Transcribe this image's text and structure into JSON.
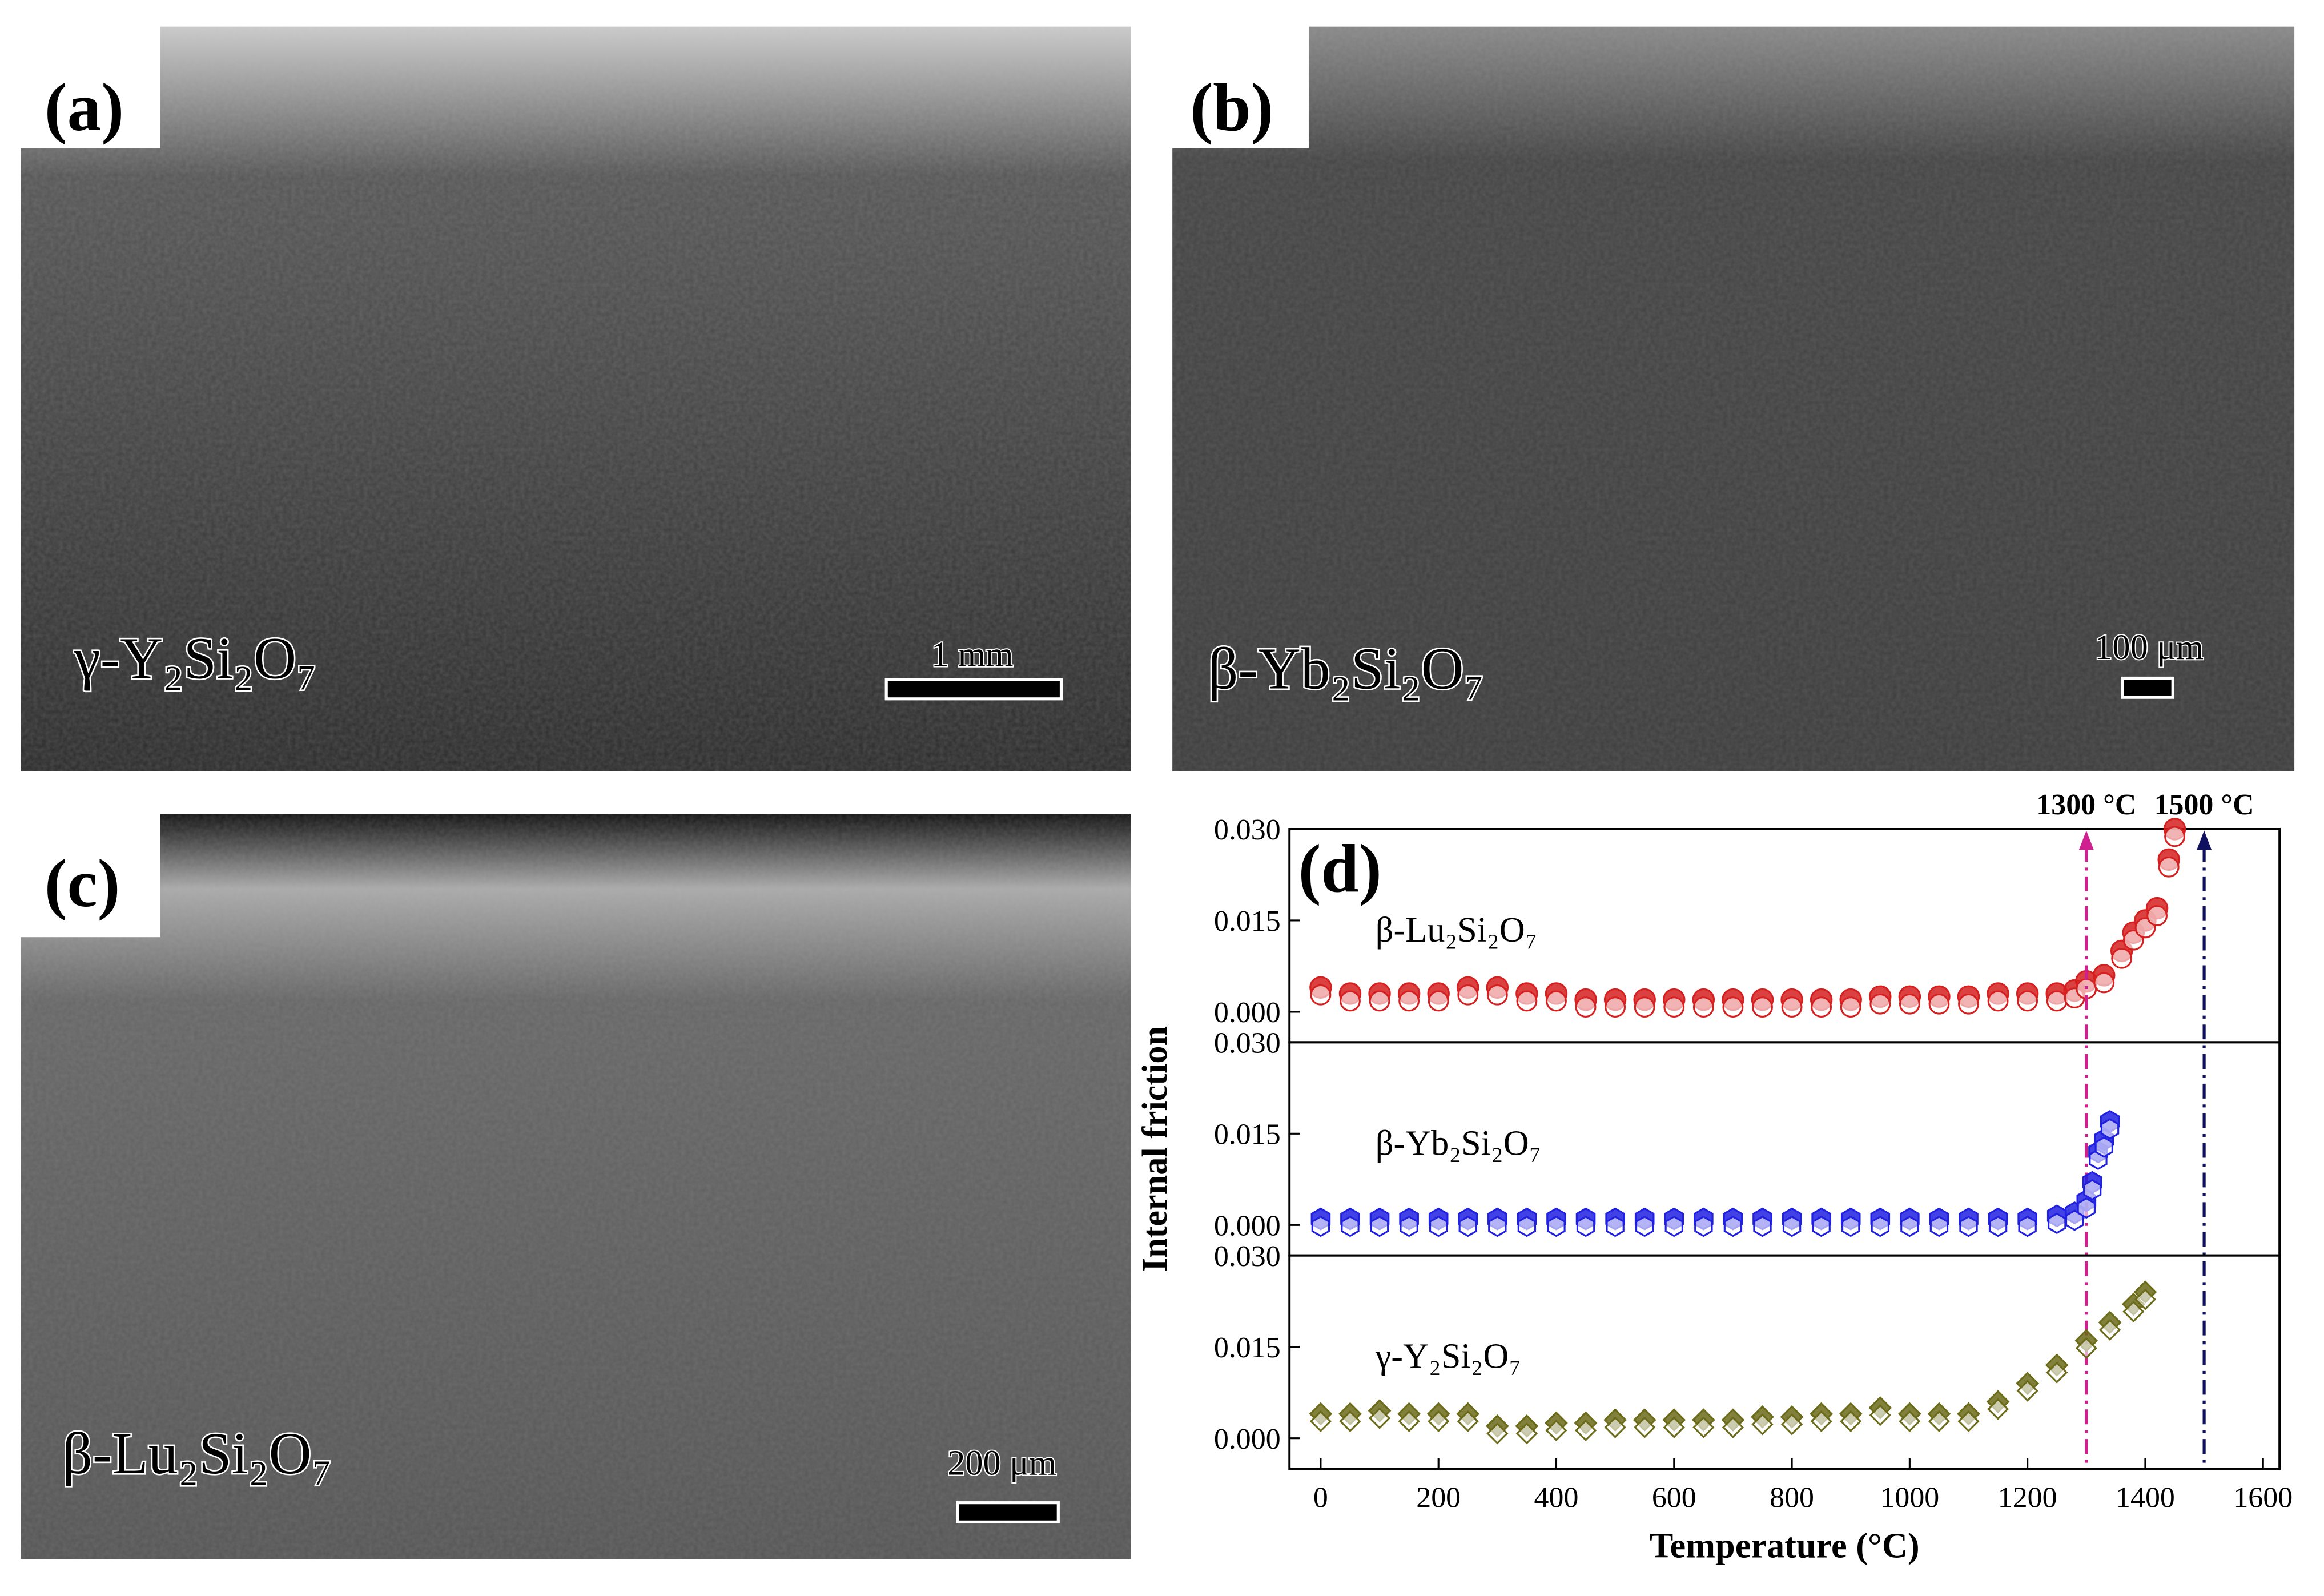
{
  "panels": [
    {
      "label": "(a)",
      "caption": "γ-Y₂Si₂O₇",
      "scale": "1 mm"
    },
    {
      "label": "(b)",
      "caption": "β-Yb₂Si₂O₇",
      "scale": "100 μm"
    },
    {
      "label": "(c)",
      "caption": "β-Lu₂Si₂O₇",
      "scale": "200 μm"
    },
    {
      "label": "(d)"
    }
  ],
  "chart_data": [
    {
      "type": "scatter",
      "ylabel": "Internal friction",
      "xlim": [
        -53,
        1628
      ],
      "ylim": [
        -0.005,
        0.03
      ],
      "yticks": [
        {
          "value": 0,
          "label": "0.000"
        },
        {
          "value": 0.015,
          "label": "0.015"
        },
        {
          "value": 0.03,
          "label": "0.030"
        }
      ],
      "annotations": [
        {
          "x": 1300,
          "label": "1300 °C",
          "color": "#d0208f"
        },
        {
          "x": 1500,
          "label": "1500 °C",
          "color": "#101060"
        }
      ],
      "series": [
        {
          "name": "β-Lu₂Si₂O₇",
          "color": "#d62020",
          "marker": "circle",
          "x": [
            0,
            50,
            100,
            150,
            200,
            250,
            300,
            350,
            400,
            450,
            500,
            550,
            600,
            650,
            700,
            750,
            800,
            850,
            900,
            950,
            1000,
            1050,
            1100,
            1150,
            1200,
            1250,
            1280,
            1300,
            1330,
            1360,
            1380,
            1400,
            1420,
            1440,
            1450
          ],
          "values": [
            0.004,
            0.003,
            0.003,
            0.003,
            0.003,
            0.004,
            0.004,
            0.003,
            0.003,
            0.002,
            0.002,
            0.002,
            0.002,
            0.002,
            0.002,
            0.002,
            0.002,
            0.002,
            0.002,
            0.0025,
            0.0025,
            0.0025,
            0.0025,
            0.003,
            0.003,
            0.003,
            0.0035,
            0.005,
            0.006,
            0.01,
            0.013,
            0.015,
            0.017,
            0.025,
            0.03
          ]
        }
      ]
    },
    {
      "type": "scatter",
      "xlim": [
        -53,
        1628
      ],
      "ylim": [
        -0.005,
        0.03
      ],
      "yticks": [
        {
          "value": 0,
          "label": "0.000"
        },
        {
          "value": 0.015,
          "label": "0.015"
        },
        {
          "value": 0.03,
          "label": "0.030"
        }
      ],
      "series": [
        {
          "name": "β-Yb₂Si₂O₇",
          "color": "#2020e0",
          "marker": "hexagon",
          "x": [
            0,
            50,
            100,
            150,
            200,
            250,
            300,
            350,
            400,
            450,
            500,
            550,
            600,
            650,
            700,
            750,
            800,
            850,
            900,
            950,
            1000,
            1050,
            1100,
            1150,
            1200,
            1250,
            1280,
            1300,
            1310,
            1320,
            1330,
            1340
          ],
          "values": [
            0.001,
            0.001,
            0.001,
            0.001,
            0.001,
            0.001,
            0.001,
            0.001,
            0.001,
            0.001,
            0.001,
            0.001,
            0.001,
            0.001,
            0.001,
            0.001,
            0.001,
            0.001,
            0.001,
            0.001,
            0.001,
            0.001,
            0.001,
            0.001,
            0.001,
            0.0015,
            0.002,
            0.004,
            0.007,
            0.012,
            0.014,
            0.017
          ]
        }
      ]
    },
    {
      "type": "scatter",
      "xlabel": "Temperature (°C)",
      "xlim": [
        -53,
        1628
      ],
      "ylim": [
        -0.005,
        0.03
      ],
      "xticks": [
        0,
        200,
        400,
        600,
        800,
        1000,
        1200,
        1400,
        1600
      ],
      "yticks": [
        {
          "value": 0,
          "label": "0.000"
        },
        {
          "value": 0.015,
          "label": "0.015"
        },
        {
          "value": 0.03,
          "label": "0.030"
        }
      ],
      "series": [
        {
          "name": "γ-Y₂Si₂O₇",
          "color": "#6b6b1a",
          "marker": "diamond",
          "x": [
            0,
            50,
            100,
            150,
            200,
            250,
            300,
            350,
            400,
            450,
            500,
            550,
            600,
            650,
            700,
            750,
            800,
            850,
            900,
            950,
            1000,
            1050,
            1100,
            1150,
            1200,
            1250,
            1300,
            1340,
            1380,
            1400
          ],
          "values": [
            0.004,
            0.004,
            0.0045,
            0.004,
            0.004,
            0.004,
            0.002,
            0.002,
            0.0025,
            0.0025,
            0.003,
            0.003,
            0.003,
            0.003,
            0.003,
            0.0035,
            0.0035,
            0.004,
            0.004,
            0.005,
            0.004,
            0.004,
            0.004,
            0.006,
            0.009,
            0.012,
            0.016,
            0.019,
            0.022,
            0.024
          ]
        }
      ]
    }
  ]
}
